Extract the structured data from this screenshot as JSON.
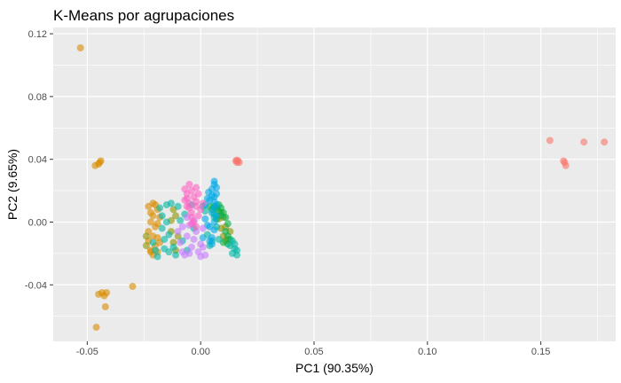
{
  "chart_data": {
    "type": "scatter",
    "title": "K-Means por agrupaciones",
    "xlabel": "PC1 (90.35%)",
    "ylabel": "PC2 (9.65%)",
    "xlim": [
      -0.065,
      0.183
    ],
    "ylim": [
      -0.076,
      0.124
    ],
    "x_ticks": [
      -0.05,
      0.0,
      0.05,
      0.1,
      0.15
    ],
    "x_tick_labels": [
      "-0.05",
      "0.00",
      "0.05",
      "0.10",
      "0.15"
    ],
    "y_ticks": [
      -0.04,
      0.0,
      0.04,
      0.08,
      0.12
    ],
    "y_tick_labels": [
      "-0.04",
      "0.00",
      "0.04",
      "0.08",
      "0.12"
    ],
    "grid": true,
    "legend": "none",
    "background": "#ebebeb",
    "grid_color": "#ffffff",
    "point_opacity": 0.6,
    "series": [
      {
        "color": "#d98c00",
        "points": [
          [
            -0.053,
            0.111
          ],
          [
            -0.0465,
            0.036
          ],
          [
            -0.045,
            0.037
          ],
          [
            -0.044,
            0.039
          ],
          [
            -0.0445,
            0.038
          ],
          [
            -0.045,
            -0.046
          ],
          [
            -0.0435,
            -0.045
          ],
          [
            -0.0425,
            -0.047
          ],
          [
            -0.0415,
            -0.045
          ],
          [
            -0.042,
            -0.054
          ],
          [
            -0.03,
            -0.041
          ],
          [
            -0.046,
            -0.067
          ],
          [
            -0.023,
            0.01
          ],
          [
            -0.022,
            0.006
          ],
          [
            -0.022,
            0.0
          ],
          [
            -0.023,
            -0.006
          ],
          [
            -0.023,
            -0.012
          ],
          [
            -0.022,
            -0.018
          ],
          [
            -0.021,
            -0.021
          ],
          [
            -0.02,
            -0.015
          ],
          [
            -0.021,
            -0.009
          ],
          [
            -0.02,
            -0.003
          ],
          [
            -0.021,
            0.004
          ],
          [
            -0.02,
            0.011
          ],
          [
            -0.019,
            0.008
          ],
          [
            -0.019,
            -0.001
          ],
          [
            -0.019,
            -0.01
          ],
          [
            -0.019,
            -0.019
          ],
          [
            -0.018,
            0.003
          ],
          [
            -0.018,
            -0.013
          ],
          [
            -0.022,
            -0.019
          ],
          [
            -0.021,
            0.012
          ]
        ]
      },
      {
        "color": "#8c9400",
        "points": [
          [
            -0.012,
            0.008
          ],
          [
            -0.013,
            0.001
          ],
          [
            -0.013,
            -0.006
          ],
          [
            -0.012,
            -0.013
          ],
          [
            -0.011,
            -0.018
          ],
          [
            -0.011,
            0.004
          ],
          [
            -0.01,
            -0.009
          ],
          [
            -0.024,
            -0.009
          ],
          [
            -0.024,
            -0.015
          ],
          [
            0.008,
            0.002
          ],
          [
            0.009,
            -0.004
          ],
          [
            0.01,
            -0.009
          ],
          [
            0.011,
            -0.012
          ],
          [
            0.009,
            0.006
          ],
          [
            0.011,
            -0.003
          ],
          [
            0.012,
            -0.011
          ],
          [
            0.01,
            0.003
          ],
          [
            0.013,
            -0.006
          ]
        ]
      },
      {
        "color": "#00b14a",
        "points": [
          [
            0.004,
            0.01
          ],
          [
            0.005,
            0.008
          ],
          [
            0.006,
            0.005
          ],
          [
            0.007,
            0.002
          ],
          [
            0.008,
            0.007
          ],
          [
            0.009,
            0.009
          ],
          [
            0.01,
            0.006
          ],
          [
            0.011,
            0.003
          ],
          [
            0.012,
            -0.001
          ],
          [
            0.011,
            -0.006
          ],
          [
            0.012,
            -0.009
          ],
          [
            0.013,
            -0.011
          ],
          [
            0.012,
            -0.014
          ],
          [
            0.01,
            -0.013
          ],
          [
            0.008,
            0.011
          ],
          [
            0.007,
            0.009
          ],
          [
            0.009,
            0.004
          ],
          [
            0.006,
            0.01
          ]
        ]
      },
      {
        "color": "#00b8a5",
        "points": [
          [
            -0.021,
            -0.013
          ],
          [
            -0.02,
            -0.018
          ],
          [
            -0.019,
            -0.022
          ],
          [
            -0.018,
            0.009
          ],
          [
            -0.017,
            0.004
          ],
          [
            -0.017,
            -0.004
          ],
          [
            -0.016,
            -0.011
          ],
          [
            -0.016,
            -0.017
          ],
          [
            -0.015,
            0.011
          ],
          [
            -0.015,
            0.0
          ],
          [
            -0.014,
            -0.008
          ],
          [
            -0.014,
            -0.019
          ],
          [
            -0.013,
            0.012
          ],
          [
            -0.012,
            -0.016
          ],
          [
            -0.011,
            -0.021
          ],
          [
            -0.01,
            0.01
          ],
          [
            -0.009,
            0.001
          ],
          [
            -0.008,
            -0.012
          ],
          [
            -0.007,
            0.005
          ],
          [
            -0.006,
            -0.018
          ],
          [
            -0.004,
            0.011
          ],
          [
            -0.003,
            -0.004
          ],
          [
            0.002,
            0.007
          ],
          [
            0.003,
            -0.008
          ],
          [
            0.004,
            -0.015
          ],
          [
            0.005,
            -0.012
          ],
          [
            0.006,
            0.003
          ],
          [
            0.007,
            -0.003
          ],
          [
            0.008,
            -0.011
          ],
          [
            0.014,
            -0.012
          ],
          [
            0.015,
            -0.014
          ],
          [
            0.015,
            -0.017
          ],
          [
            0.014,
            -0.02
          ],
          [
            0.016,
            -0.021
          ],
          [
            0.013,
            -0.015
          ],
          [
            0.016,
            -0.018
          ],
          [
            0.001,
            0.01
          ]
        ]
      },
      {
        "color": "#00a9e6",
        "points": [
          [
            0.005,
            0.017
          ],
          [
            0.005,
            0.021
          ],
          [
            0.006,
            0.024
          ],
          [
            0.006,
            0.026
          ],
          [
            0.007,
            0.022
          ],
          [
            0.007,
            0.018
          ],
          [
            0.006,
            0.013
          ],
          [
            0.006,
            0.009
          ],
          [
            0.007,
            0.004
          ],
          [
            0.006,
            0.0
          ],
          [
            0.006,
            -0.005
          ],
          [
            0.005,
            -0.01
          ],
          [
            0.005,
            -0.014
          ],
          [
            0.004,
            0.014
          ],
          [
            0.007,
            0.011
          ],
          [
            0.006,
            0.016
          ],
          [
            0.005,
            0.006
          ],
          [
            0.004,
            -0.003
          ],
          [
            0.002,
            0.011
          ],
          [
            0.003,
            0.015
          ],
          [
            0.002,
            0.002
          ],
          [
            0.003,
            -0.002
          ],
          [
            0.004,
            -0.012
          ],
          [
            0.001,
            -0.01
          ],
          [
            0.0035,
            0.019
          ]
        ]
      },
      {
        "color": "#c77cff",
        "points": [
          [
            -0.01,
            -0.006
          ],
          [
            -0.009,
            -0.013
          ],
          [
            -0.008,
            -0.019
          ],
          [
            -0.007,
            -0.021
          ],
          [
            -0.006,
            -0.009
          ],
          [
            -0.005,
            -0.002
          ],
          [
            -0.004,
            -0.016
          ],
          [
            -0.003,
            -0.011
          ],
          [
            -0.002,
            -0.006
          ],
          [
            -0.001,
            -0.019
          ],
          [
            0.0,
            -0.014
          ],
          [
            0.001,
            -0.004
          ],
          [
            0.002,
            -0.021
          ],
          [
            0.0,
            -0.022
          ],
          [
            -0.006,
            0.003
          ],
          [
            -0.003,
            0.001
          ],
          [
            0.001,
            -0.016
          ],
          [
            -0.008,
            -0.003
          ],
          [
            -0.005,
            -0.02
          ]
        ]
      },
      {
        "color": "#ff61c3",
        "points": [
          [
            -0.007,
            0.021
          ],
          [
            -0.006,
            0.018
          ],
          [
            -0.006,
            0.015
          ],
          [
            -0.005,
            0.012
          ],
          [
            -0.005,
            0.009
          ],
          [
            -0.004,
            0.006
          ],
          [
            -0.004,
            0.003
          ],
          [
            -0.003,
            0.0
          ],
          [
            -0.002,
            -0.003
          ],
          [
            -0.001,
            0.004
          ],
          [
            -0.002,
            0.01
          ],
          [
            -0.003,
            0.016
          ],
          [
            -0.004,
            0.02
          ],
          [
            -0.005,
            0.024
          ],
          [
            -0.002,
            0.013
          ],
          [
            -0.001,
            0.018
          ],
          [
            0.0,
            0.008
          ],
          [
            -0.006,
            0.01
          ],
          [
            -0.007,
            0.014
          ],
          [
            -0.002,
            0.022
          ],
          [
            -0.004,
            -0.001
          ],
          [
            0.001,
            0.012
          ]
        ]
      },
      {
        "color": "#f8766d",
        "points": [
          [
            0.0155,
            0.039
          ],
          [
            0.0165,
            0.039
          ],
          [
            0.016,
            0.038
          ],
          [
            0.017,
            0.038
          ],
          [
            0.016,
            0.0395
          ],
          [
            0.154,
            0.052
          ],
          [
            0.16,
            0.039
          ],
          [
            0.1605,
            0.038
          ],
          [
            0.161,
            0.036
          ],
          [
            0.169,
            0.051
          ],
          [
            0.178,
            0.051
          ]
        ]
      }
    ]
  }
}
